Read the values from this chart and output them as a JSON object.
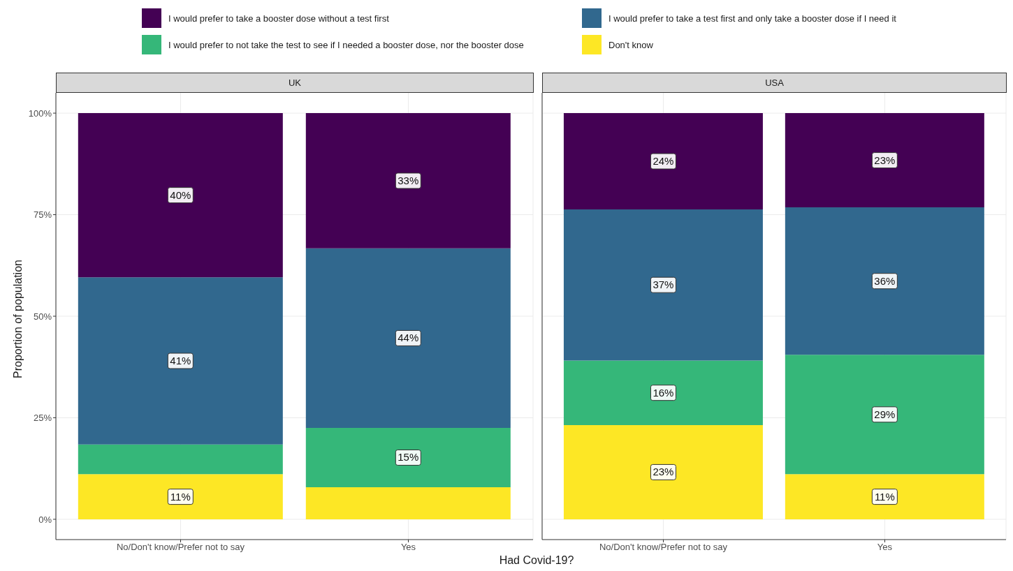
{
  "chart_data": [
    {
      "type": "bar",
      "title": "UK",
      "xlabel": "Had Covid-19?",
      "ylabel": "Proportion of population",
      "stacked": true,
      "grid": true,
      "legend": "top",
      "categories": [
        "No/Don't know/Prefer not to say",
        "Yes"
      ],
      "ylim": [
        -5,
        105
      ],
      "yticks": [
        {
          "value": 0,
          "label": "0%"
        },
        {
          "value": 25,
          "label": "25%"
        },
        {
          "value": 50,
          "label": "50%"
        },
        {
          "value": 75,
          "label": "75%"
        },
        {
          "value": 100,
          "label": "100%"
        }
      ],
      "series": [
        {
          "name": "Don't know",
          "color": "#fde725",
          "values": [
            11.1,
            7.9
          ],
          "value_labels": [
            "11%",
            null
          ]
        },
        {
          "name": "I would prefer to not take the test to see if I needed a booster dose, nor the booster dose",
          "color": "#35b779",
          "values": [
            7.3,
            14.6
          ],
          "value_labels": [
            null,
            "15%"
          ]
        },
        {
          "name": "I would prefer to take a test first and only take a booster dose if I need it",
          "color": "#31688e",
          "values": [
            41.2,
            44.2
          ],
          "value_labels": [
            "41%",
            "44%"
          ]
        },
        {
          "name": "I would prefer to take a booster dose without a test first",
          "color": "#440154",
          "values": [
            40.4,
            33.3
          ],
          "value_labels": [
            "40%",
            "33%"
          ]
        }
      ]
    },
    {
      "type": "bar",
      "title": "USA",
      "stacked": true,
      "grid": true,
      "tick_labels": "x",
      "categories": [
        "No/Don't know/Prefer not to say",
        "Yes"
      ],
      "ylim": [
        -5,
        105
      ],
      "yticks": [
        0,
        25,
        50,
        75,
        100
      ],
      "series": [
        {
          "color": "#fde725",
          "values": [
            23.2,
            11.1
          ],
          "value_labels": [
            "23%",
            "11%"
          ]
        },
        {
          "color": "#35b779",
          "values": [
            15.9,
            29.4
          ],
          "value_labels": [
            "16%",
            "29%"
          ]
        },
        {
          "color": "#31688e",
          "values": [
            37.2,
            36.3
          ],
          "value_labels": [
            "37%",
            "36%"
          ]
        },
        {
          "color": "#440154",
          "values": [
            23.7,
            23.2
          ],
          "value_labels": [
            "24%",
            "23%"
          ]
        }
      ]
    }
  ]
}
